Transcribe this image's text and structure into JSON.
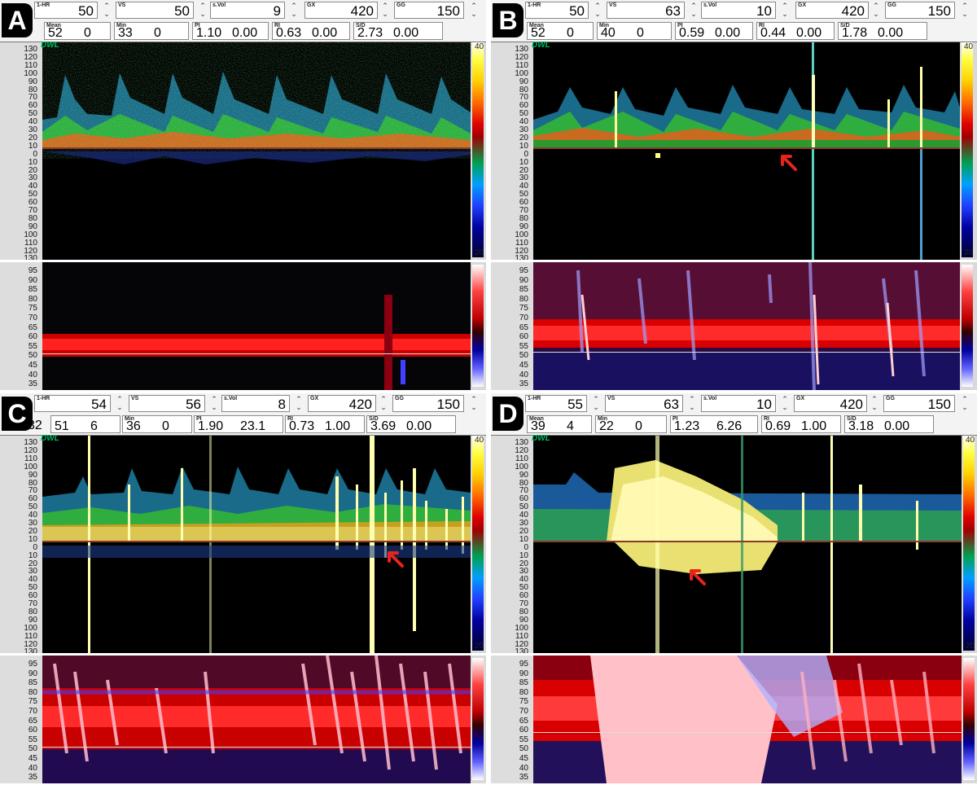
{
  "panels": [
    {
      "label": "A",
      "top": [
        {
          "cap": "1-HR",
          "val": "50"
        },
        {
          "cap": "VS",
          "val": "50"
        },
        {
          "cap": "s.Vol",
          "val": "9"
        },
        {
          "cap": "GX",
          "val": "420"
        },
        {
          "cap": "GG",
          "val": "150"
        }
      ],
      "bottom": [
        {
          "cap": "Mean",
          "a": "52",
          "b": "0"
        },
        {
          "cap": "Min",
          "a": "33",
          "b": "0"
        },
        {
          "cap": "PI",
          "a": "1.10",
          "b": "0.00"
        },
        {
          "cap": "RI",
          "a": "0.63",
          "b": "0.00"
        },
        {
          "cap": "S/D",
          "a": "2.73",
          "b": "0.00"
        }
      ],
      "logo": "DWL",
      "cmax": "40",
      "cmin": "20"
    },
    {
      "label": "B",
      "top": [
        {
          "cap": "1-HR",
          "val": "50"
        },
        {
          "cap": "VS",
          "val": "63"
        },
        {
          "cap": "s.Vol",
          "val": "10"
        },
        {
          "cap": "GX",
          "val": "420"
        },
        {
          "cap": "GG",
          "val": "150"
        }
      ],
      "bottom": [
        {
          "cap": "Mean",
          "a": "52",
          "b": "0"
        },
        {
          "cap": "Min",
          "a": "40",
          "b": "0"
        },
        {
          "cap": "PI",
          "a": "0.59",
          "b": "0.00"
        },
        {
          "cap": "RI",
          "a": "0.44",
          "b": "0.00"
        },
        {
          "cap": "S/D",
          "a": "1.78",
          "b": "0.00"
        }
      ],
      "logo": "DWL",
      "cmax": "40",
      "cmin": "20"
    },
    {
      "label": "C",
      "top": [
        {
          "cap": "1-HR",
          "val": "54"
        },
        {
          "cap": "VS",
          "val": "56"
        },
        {
          "cap": "s.Vol",
          "val": "8"
        },
        {
          "cap": "GX",
          "val": "420"
        },
        {
          "cap": "GG",
          "val": "150"
        }
      ],
      "lead": "32",
      "bottom": [
        {
          "cap": "",
          "a": "51",
          "b": "6"
        },
        {
          "cap": "Min",
          "a": "36",
          "b": "0"
        },
        {
          "cap": "PI",
          "a": "1.90",
          "b": "23.1"
        },
        {
          "cap": "RI",
          "a": "0.73",
          "b": "1.00"
        },
        {
          "cap": "S/D",
          "a": "3.69",
          "b": "0.00"
        }
      ],
      "logo": "DWL",
      "cmax": "40",
      "cmin": "20"
    },
    {
      "label": "D",
      "top": [
        {
          "cap": "1-HR",
          "val": "55"
        },
        {
          "cap": "VS",
          "val": "63"
        },
        {
          "cap": "s.Vol",
          "val": "10"
        },
        {
          "cap": "GX",
          "val": "420"
        },
        {
          "cap": "GG",
          "val": "150"
        }
      ],
      "bottom": [
        {
          "cap": "Mean",
          "a": "39",
          "b": "4"
        },
        {
          "cap": "Min",
          "a": "22",
          "b": "0"
        },
        {
          "cap": "PI",
          "a": "1.23",
          "b": "6.26"
        },
        {
          "cap": "RI",
          "a": "0.69",
          "b": "1.00"
        },
        {
          "cap": "S/D",
          "a": "3.18",
          "b": "0.00"
        }
      ],
      "logo": "DWL",
      "cmax": "40",
      "cmin": "20"
    }
  ],
  "velocity_ticks": [
    "130",
    "120",
    "110",
    "100",
    "90",
    "80",
    "70",
    "60",
    "50",
    "40",
    "30",
    "20",
    "10",
    "0",
    "10",
    "20",
    "30",
    "40",
    "50",
    "60",
    "70",
    "80",
    "90",
    "100",
    "110",
    "120",
    "130"
  ],
  "mmode_ticks": [
    "95",
    "90",
    "85",
    "80",
    "75",
    "70",
    "65",
    "60",
    "55",
    "50",
    "45",
    "40",
    "35"
  ],
  "colors": {
    "arrow": "#e8231c",
    "spectrum_high": "#ffffa0",
    "mmode_red": "#e00000"
  }
}
